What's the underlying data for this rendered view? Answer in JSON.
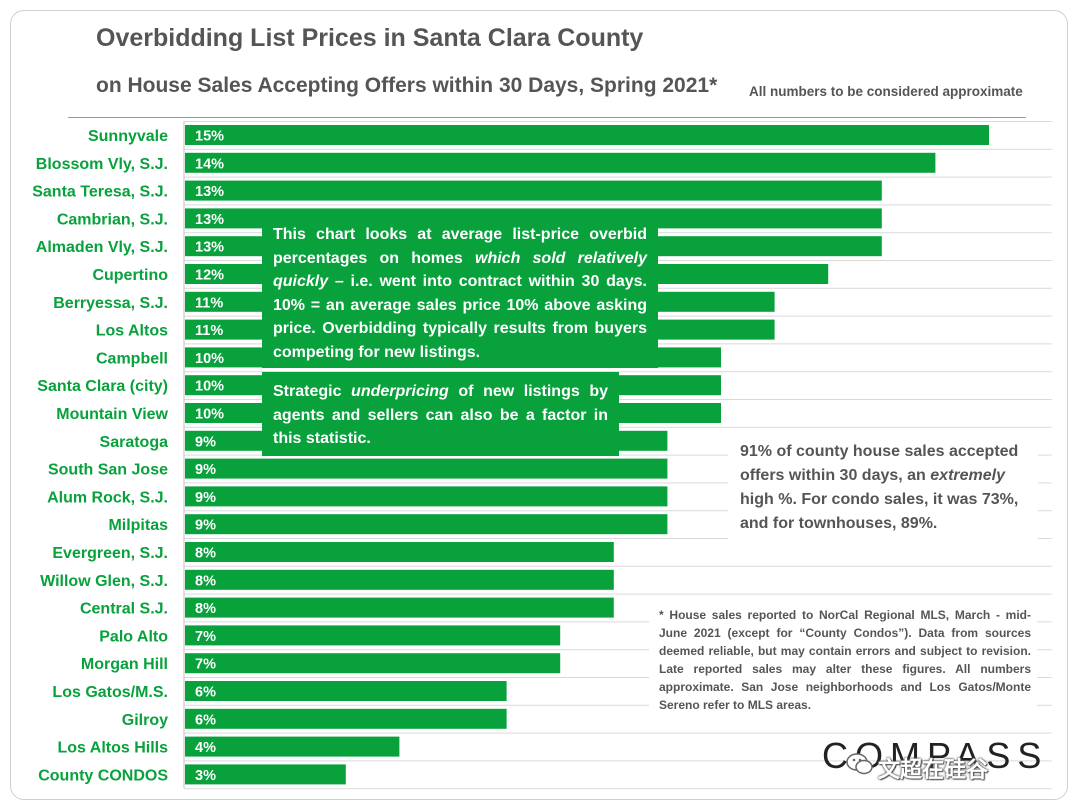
{
  "header": {
    "title": "Overbidding List Prices in Santa Clara County",
    "subtitle": "on House Sales Accepting Offers within 30 Days, Spring 2021*",
    "approx_note": "All numbers to be considered approximate"
  },
  "chart_data": {
    "type": "bar",
    "orientation": "horizontal",
    "title": "Overbidding List Prices in Santa Clara County",
    "categories": [
      "Sunnyvale",
      "Blossom Vly, S.J.",
      "Santa Teresa, S.J.",
      "Cambrian, S.J.",
      "Almaden Vly, S.J.",
      "Cupertino",
      "Berryessa, S.J.",
      "Los Altos",
      "Campbell",
      "Santa Clara (city)",
      "Mountain View",
      "Saratoga",
      "South San Jose",
      "Alum Rock, S.J.",
      "Milpitas",
      "Evergreen, S.J.",
      "Willow Glen, S.J.",
      "Central S.J.",
      "Palo Alto",
      "Morgan Hill",
      "Los Gatos/M.S.",
      "Gilroy",
      "Los Altos Hills",
      "County CONDOS"
    ],
    "values": [
      15,
      14,
      13,
      13,
      13,
      12,
      11,
      11,
      10,
      10,
      10,
      9,
      9,
      9,
      9,
      8,
      8,
      8,
      7,
      7,
      6,
      6,
      4,
      3
    ],
    "value_labels": [
      "15%",
      "14%",
      "13%",
      "13%",
      "13%",
      "12%",
      "11%",
      "11%",
      "10%",
      "10%",
      "10%",
      "9%",
      "9%",
      "9%",
      "9%",
      "8%",
      "8%",
      "8%",
      "7%",
      "7%",
      "6%",
      "6%",
      "4%",
      "3%"
    ],
    "xlim": [
      0,
      16
    ],
    "grid": true,
    "bar_color": "#08a13c",
    "label_color": "#08a13c",
    "gridline_color": "#d9d9d9"
  },
  "notes": {
    "box1_a": "This chart looks at average list-price overbid percentages on homes ",
    "box1_em": "which sold relatively quickly",
    "box1_b": " – i.e. went into contract within 30 days. 10% = an average sales price 10% above asking price. Overbidding typically results from buyers competing for new listings.",
    "box2_a": "Strategic ",
    "box2_em": "underpricing",
    "box2_b": " of new listings by agents and sellers can also be a factor in this statistic.",
    "side_a": "91% of county house sales accepted offers within 30 days, an ",
    "side_em": "extremely",
    "side_b": " high %. For condo sales, it was 73%, and for townhouses, 89%.",
    "footnote": "* House sales reported to NorCal Regional MLS, March - mid-June 2021 (except for “County Condos”). Data from sources deemed reliable, but may contain errors and subject to revision. Late reported sales may alter these figures. All numbers approximate. San Jose neighborhoods and Los Gatos/Monte Sereno refer to MLS areas."
  },
  "branding": {
    "logo_text": "COMPASS",
    "watermark_text": "文超在硅谷"
  }
}
